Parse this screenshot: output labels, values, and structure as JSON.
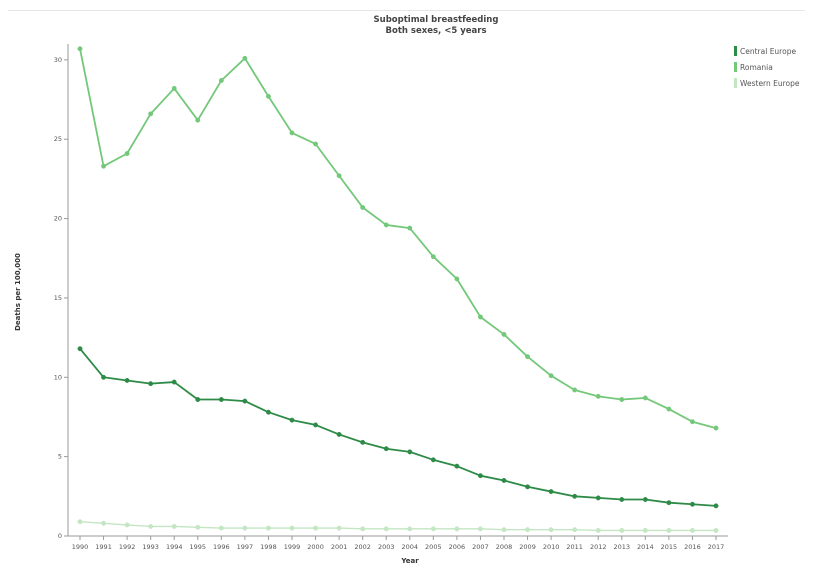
{
  "chart_data": {
    "type": "line",
    "title": "Suboptimal breastfeeding",
    "subtitle": "Both sexes, <5 years",
    "xlabel": "Year",
    "ylabel": "Deaths per 100,000",
    "ylim": [
      0,
      31
    ],
    "yticks": [
      0,
      5,
      10,
      15,
      20,
      25,
      30
    ],
    "grid": false,
    "legend_position": "top-right",
    "x": [
      "1990",
      "1991",
      "1992",
      "1993",
      "1994",
      "1995",
      "1996",
      "1997",
      "1998",
      "1999",
      "2000",
      "2001",
      "2002",
      "2003",
      "2004",
      "2005",
      "2006",
      "2007",
      "2008",
      "2009",
      "2010",
      "2011",
      "2012",
      "2013",
      "2014",
      "2015",
      "2016",
      "2017"
    ],
    "series": [
      {
        "name": "Central Europe",
        "color": "#2e8b47",
        "values": [
          11.8,
          10.0,
          9.8,
          9.6,
          9.7,
          8.6,
          8.6,
          8.5,
          7.8,
          7.3,
          7.0,
          6.4,
          5.9,
          5.5,
          5.3,
          4.8,
          4.4,
          3.8,
          3.5,
          3.1,
          2.8,
          2.5,
          2.4,
          2.3,
          2.3,
          2.1,
          2.0,
          1.9
        ]
      },
      {
        "name": "Romania",
        "color": "#74c87a",
        "values": [
          30.7,
          23.3,
          24.1,
          26.6,
          28.2,
          26.2,
          28.7,
          30.1,
          27.7,
          25.4,
          24.7,
          22.7,
          20.7,
          19.6,
          19.4,
          17.6,
          16.2,
          13.8,
          12.7,
          11.3,
          10.1,
          9.2,
          8.8,
          8.6,
          8.7,
          8.0,
          7.2,
          6.8
        ]
      },
      {
        "name": "Western Europe",
        "color": "#c3e6c3",
        "values": [
          0.9,
          0.8,
          0.7,
          0.6,
          0.6,
          0.55,
          0.5,
          0.5,
          0.5,
          0.5,
          0.5,
          0.5,
          0.45,
          0.45,
          0.45,
          0.45,
          0.45,
          0.45,
          0.4,
          0.4,
          0.4,
          0.4,
          0.35,
          0.35,
          0.35,
          0.35,
          0.35,
          0.35
        ]
      }
    ]
  }
}
